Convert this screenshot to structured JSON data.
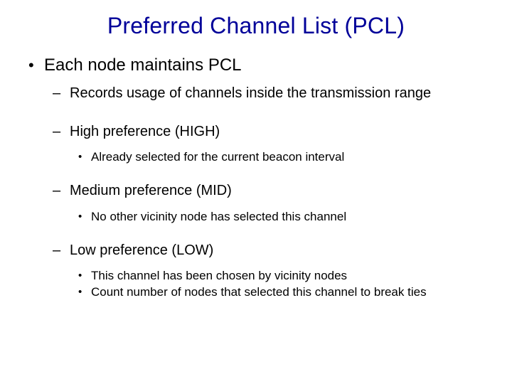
{
  "slide": {
    "title": "Preferred Channel List (PCL)",
    "title_color": "#000099",
    "text_color": "#000000",
    "background_color": "#ffffff",
    "font_family": "Arial",
    "title_fontsize": 32,
    "level1_fontsize": 24,
    "level2_fontsize": 20,
    "level3_fontsize": 17,
    "bullets": {
      "l1_0": "Each node maintains PCL",
      "l2_0": "Records usage of channels inside the transmission range",
      "l2_1": "High preference (HIGH)",
      "l3_1_0": "Already selected for the current beacon interval",
      "l2_2": "Medium preference (MID)",
      "l3_2_0": "No other vicinity node has selected this channel",
      "l2_3": "Low preference (LOW)",
      "l3_3_0": "This channel has been chosen by vicinity nodes",
      "l3_3_1": "Count number of nodes that selected this channel to break ties"
    }
  }
}
